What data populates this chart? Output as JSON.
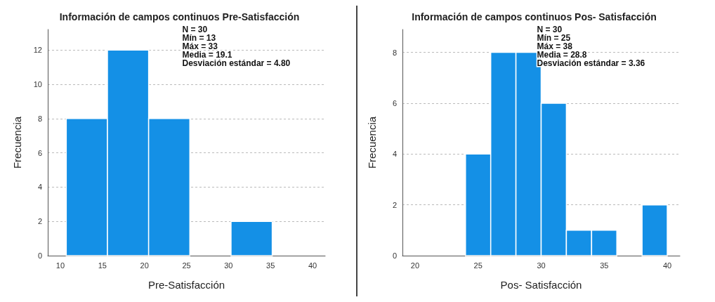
{
  "chart_data": [
    {
      "type": "histogram",
      "title": "Información de campos continuos Pre-Satisfacción",
      "xlabel": "Pre-Satisfacción",
      "ylabel": "Frecuencia",
      "bins": [
        10.7,
        15.6,
        20.5,
        25.4,
        30.3,
        35.2
      ],
      "values": [
        8,
        12,
        8,
        0,
        2
      ],
      "color": "#1490e6",
      "xlim": [
        8.5,
        41.5
      ],
      "xticks": [
        10,
        15,
        20,
        25,
        30,
        35,
        40
      ],
      "ylim": [
        0,
        13.2
      ],
      "yticks": [
        0,
        2,
        4,
        6,
        8,
        10,
        12
      ],
      "grid": "y",
      "annotations": [
        "N = 30",
        "Mín = 13",
        "Máx = 33",
        "Media = 19.1",
        "Desviación estándar = 4.80"
      ]
    },
    {
      "type": "histogram",
      "title": "Información de campos continuos Pos- Satisfacción",
      "xlabel": "Pos- Satisfacción",
      "ylabel": "Frecuencia",
      "bins": [
        24,
        26,
        28,
        30,
        32,
        34,
        36,
        38,
        40
      ],
      "values": [
        4,
        8,
        8,
        6,
        1,
        1,
        0,
        2
      ],
      "color": "#1490e6",
      "xlim": [
        19,
        41
      ],
      "xticks": [
        20,
        25,
        30,
        35,
        40
      ],
      "ylim": [
        0,
        8.9
      ],
      "yticks": [
        0,
        2,
        4,
        6,
        8
      ],
      "grid": "y",
      "annotations": [
        "N = 30",
        "Mín = 25",
        "Máx = 38",
        "Media = 28.8",
        "Desviación estándar = 3.36"
      ]
    }
  ]
}
